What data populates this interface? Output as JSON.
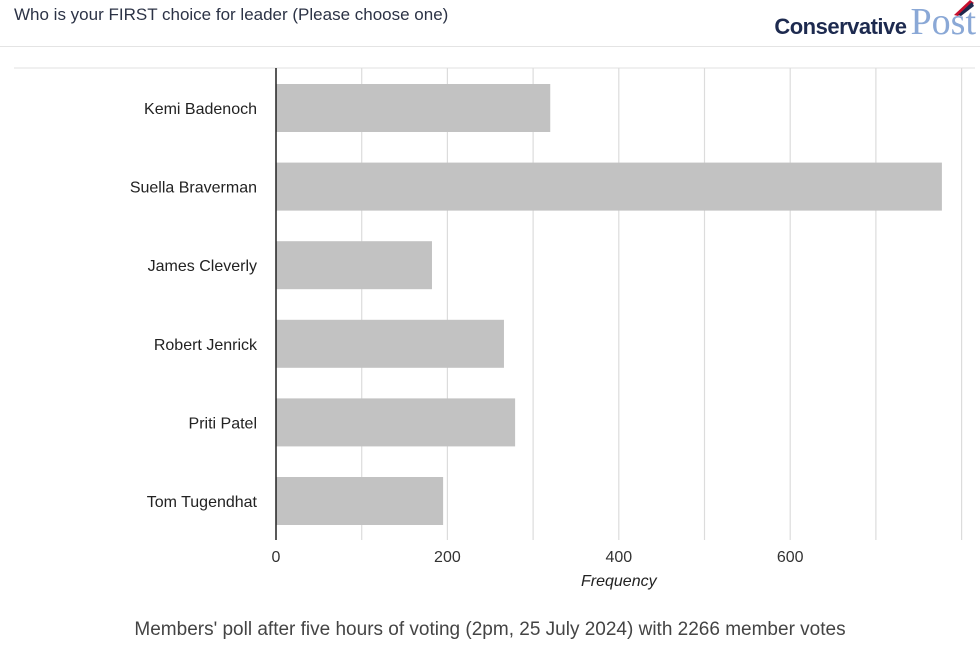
{
  "header": {
    "title": "Who is your FIRST choice for leader (Please choose one)",
    "logo": {
      "line1": "Conservative",
      "line2": "Post"
    }
  },
  "caption": "Members' poll after five hours of voting (2pm, 25 July 2024) with 2266 member votes",
  "chart_data": {
    "type": "bar",
    "orientation": "horizontal",
    "categories": [
      "Kemi Badenoch",
      "Suella Braverman",
      "James Cleverly",
      "Robert Jenrick",
      "Priti Patel",
      "Tom Tugendhat"
    ],
    "values": [
      320,
      777,
      182,
      266,
      279,
      195
    ],
    "xlabel": "Frequency",
    "ylabel": "",
    "xlim": [
      0,
      800
    ],
    "xticks": [
      0,
      200,
      400,
      600
    ],
    "grid": true,
    "bar_color": "#c2c2c2"
  }
}
